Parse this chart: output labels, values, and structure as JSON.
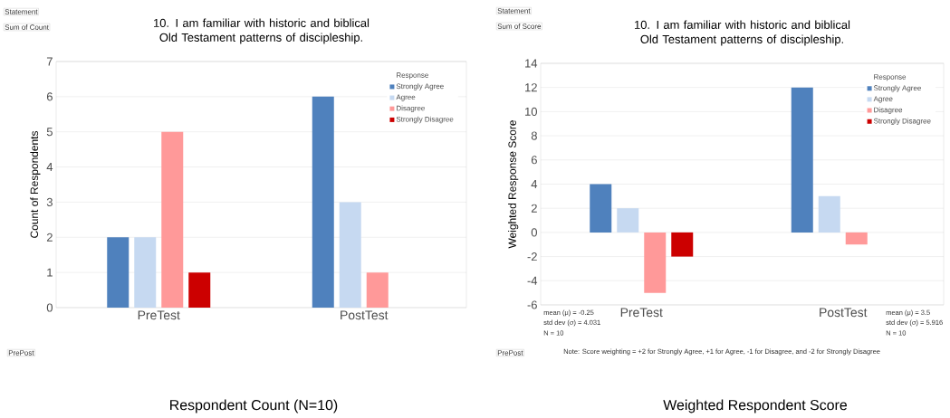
{
  "chart_data": [
    {
      "type": "bar",
      "title": "10. I am familiar with historic and biblical Old Testament patterns of discipleship.",
      "ylabel": "Count of Respondents",
      "legend_title": "Response",
      "categories": [
        "PreTest",
        "PostTest"
      ],
      "series": [
        {
          "name": "Strongly Agree",
          "color": "#4f81bd",
          "values": [
            2,
            6
          ]
        },
        {
          "name": "Agree",
          "color": "#c6d9f1",
          "values": [
            2,
            3
          ]
        },
        {
          "name": "Disagree",
          "color": "#ff9999",
          "values": [
            5,
            1
          ]
        },
        {
          "name": "Strongly Disagree",
          "color": "#cc0000",
          "values": [
            1,
            null
          ]
        }
      ],
      "ylim": [
        0,
        7
      ],
      "yticks": [
        0,
        1,
        2,
        3,
        4,
        5,
        6,
        7
      ],
      "grid": "y",
      "legend": "top right",
      "annotations": [
        "Statement",
        "Sum of Count",
        "PrePost",
        "Respondent Count (N=10)"
      ]
    },
    {
      "type": "bar",
      "title": "10. I am familiar with historic and biblical Old Testament patterns of discipleship.",
      "ylabel": "Weighted Response Score",
      "legend_title": "Response",
      "categories": [
        "PreTest",
        "PostTest"
      ],
      "series": [
        {
          "name": "Strongly Agree",
          "color": "#4f81bd",
          "values": [
            4,
            12
          ]
        },
        {
          "name": "Agree",
          "color": "#c6d9f1",
          "values": [
            2,
            3
          ]
        },
        {
          "name": "Disagree",
          "color": "#ff9999",
          "values": [
            -5,
            -1
          ]
        },
        {
          "name": "Strongly Disagree",
          "color": "#cc0000",
          "values": [
            -2,
            null
          ]
        }
      ],
      "ylim": [
        -6,
        14
      ],
      "yticks": [
        -6,
        -4,
        -2,
        0,
        2,
        4,
        6,
        8,
        10,
        12,
        14
      ],
      "grid": "y",
      "legend": "top right",
      "annotations": [
        "Statement",
        "Sum of Score",
        "mean (μ) =   -0.25",
        "std dev (σ) = 4.031",
        "N = 10",
        "mean (μ) =   3.5",
        "std dev (σ) = 5.916",
        "N = 10",
        "Note: Score weighting = +2 for Strongly Agree, +1 for Agree, -1 for Disagree, and -2 for Strongly Disagree",
        "PrePost",
        "Weighted Respondent Score"
      ]
    }
  ]
}
